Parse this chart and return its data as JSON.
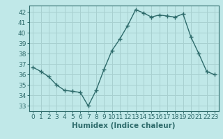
{
  "x": [
    0,
    1,
    2,
    3,
    4,
    5,
    6,
    7,
    8,
    9,
    10,
    11,
    12,
    13,
    14,
    15,
    16,
    17,
    18,
    19,
    20,
    21,
    22,
    23
  ],
  "y": [
    36.7,
    36.3,
    35.8,
    35.0,
    34.5,
    34.4,
    34.3,
    33.0,
    34.5,
    36.5,
    38.3,
    39.4,
    40.7,
    42.2,
    41.9,
    41.5,
    41.7,
    41.6,
    41.5,
    41.8,
    39.6,
    38.0,
    36.3,
    36.0
  ],
  "xlabel": "Humidex (Indice chaleur)",
  "xlim": [
    -0.5,
    23.5
  ],
  "ylim": [
    32.5,
    42.6
  ],
  "yticks": [
    33,
    34,
    35,
    36,
    37,
    38,
    39,
    40,
    41,
    42
  ],
  "xticks": [
    0,
    1,
    2,
    3,
    4,
    5,
    6,
    7,
    8,
    9,
    10,
    11,
    12,
    13,
    14,
    15,
    16,
    17,
    18,
    19,
    20,
    21,
    22,
    23
  ],
  "line_color": "#2e6b6b",
  "marker": "+",
  "bg_color": "#c0e8e8",
  "grid_color": "#a8d0d0",
  "axis_color": "#2e6b6b",
  "tick_color": "#2e6b6b",
  "label_color": "#2e6b6b",
  "linewidth": 1.0,
  "markersize": 4,
  "tick_fontsize": 6.5,
  "xlabel_fontsize": 7.5
}
